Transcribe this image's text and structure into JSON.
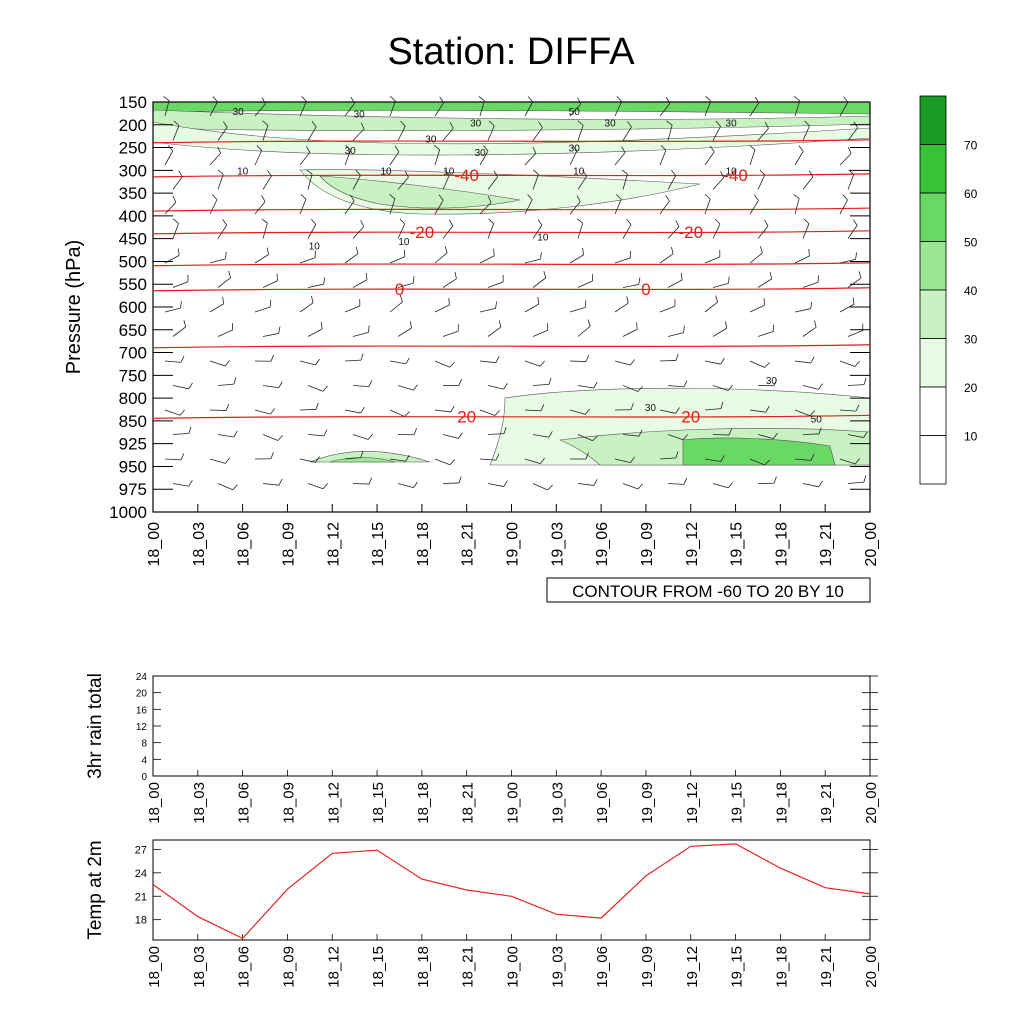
{
  "title": "Station: DIFFA",
  "chart_data": [
    {
      "type": "contour",
      "name": "upper-air-cross-section",
      "ylabel": "Pressure (hPa)",
      "y_tick_labels": [
        "150",
        "200",
        "250",
        "300",
        "350",
        "400",
        "450",
        "500",
        "550",
        "600",
        "650",
        "700",
        "750",
        "800",
        "850",
        "925",
        "950",
        "975",
        "1000"
      ],
      "x_tick_labels": [
        "18_00",
        "18_03",
        "18_06",
        "18_09",
        "18_12",
        "18_15",
        "18_18",
        "18_21",
        "19_00",
        "19_03",
        "19_06",
        "19_09",
        "19_12",
        "19_15",
        "19_18",
        "19_21",
        "20_00"
      ],
      "info_label": "CONTOUR FROM -60 TO 20 BY 10",
      "temperature_contours": [
        {
          "value": -40,
          "label": "-40",
          "level": 3.2,
          "label_at": [
            7,
            13
          ]
        },
        {
          "value": -20,
          "label": "-20",
          "level": 5.7,
          "label_at": [
            6,
            12
          ]
        },
        {
          "value": 0,
          "label": "0",
          "level": 8.2,
          "label_at": [
            5.5,
            11
          ]
        },
        {
          "value": -20,
          "label": "-20",
          "level": 7.1,
          "label_at": [],
          "note": "upper red contour near 450"
        },
        {
          "value": 20,
          "label": "20",
          "level": 13.8,
          "label_at": [
            7,
            12
          ]
        }
      ],
      "fill_legend": {
        "labels": [
          "10",
          "20",
          "30",
          "40",
          "50",
          "60",
          "70"
        ],
        "colors": [
          "#ffffff",
          "#ffffff",
          "#e8fbe4",
          "#c9f2c2",
          "#9be794",
          "#6ad865",
          "#37c338",
          "#1a9a24"
        ]
      },
      "humidity_labels": [
        "30",
        "30",
        "30",
        "30",
        "30",
        "50",
        "30",
        "30",
        "30",
        "30",
        "10",
        "10",
        "10",
        "10",
        "10",
        "10",
        "10",
        "10",
        "30",
        "30",
        "50"
      ]
    },
    {
      "type": "line",
      "name": "3hr-rain-total",
      "ylabel": "3hr rain total",
      "y_ticks": [
        "0",
        "4",
        "8",
        "12",
        "16",
        "20",
        "24"
      ],
      "ylim": [
        0,
        24
      ],
      "x_tick_labels": [
        "18_00",
        "18_03",
        "18_06",
        "18_09",
        "18_12",
        "18_15",
        "18_18",
        "18_21",
        "19_00",
        "19_03",
        "19_06",
        "19_09",
        "19_12",
        "19_15",
        "19_18",
        "19_21",
        "20_00"
      ],
      "values": []
    },
    {
      "type": "line",
      "name": "temp-at-2m",
      "ylabel": "Temp at 2m",
      "y_ticks": [
        "18",
        "21",
        "24",
        "27"
      ],
      "ylim": [
        15.4,
        28.2
      ],
      "x_tick_labels": [
        "18_00",
        "18_03",
        "18_06",
        "18_09",
        "18_12",
        "18_15",
        "18_18",
        "18_21",
        "19_00",
        "19_03",
        "19_06",
        "19_09",
        "19_12",
        "19_15",
        "19_18",
        "19_21",
        "20_00"
      ],
      "values": [
        22.5,
        18.4,
        15.6,
        21.9,
        26.5,
        26.9,
        23.2,
        21.8,
        21.0,
        18.7,
        18.2,
        23.6,
        27.4,
        27.7,
        24.6,
        22.1,
        21.3
      ],
      "line_color": "#e8231f"
    }
  ]
}
